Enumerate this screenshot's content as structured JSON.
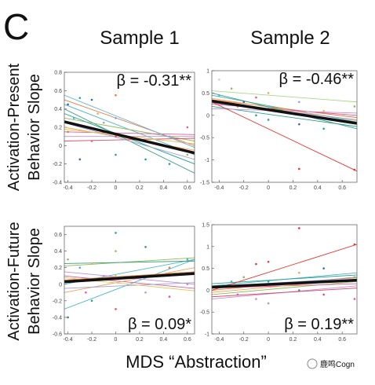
{
  "figure": {
    "panel": "C",
    "columns": [
      "Sample 1",
      "Sample 2"
    ],
    "rows": [
      [
        "Activation-Present",
        "Behavior Slope"
      ],
      [
        "Activation-Future",
        "Behavior Slope"
      ]
    ],
    "xlabel": "MDS “Abstraction”",
    "watermark": "鹿鸣Cogn"
  },
  "chart_data": [
    {
      "type": "scatter",
      "annotation": "β = -0.31**",
      "xlim": [
        -0.43,
        0.66
      ],
      "ylim": [
        -0.4,
        0.8
      ],
      "xticks": [
        -0.4,
        -0.2,
        0,
        0.2,
        0.4,
        0.6
      ],
      "yticks": [
        -0.4,
        -0.2,
        0,
        0.2,
        0.4,
        0.6,
        0.8
      ],
      "x_range": [
        -0.43,
        0.66
      ],
      "fit": {
        "color": "#111111",
        "values": [
          0.26,
          -0.08
        ]
      },
      "lines": [
        {
          "color": "#4db6c4",
          "values": [
            0.45,
            -0.1
          ]
        },
        {
          "color": "#e07b39",
          "values": [
            0.5,
            0.0
          ]
        },
        {
          "color": "#8fbc5a",
          "values": [
            0.3,
            0.05
          ]
        },
        {
          "color": "#e05a9a",
          "values": [
            0.15,
            0.12
          ]
        },
        {
          "color": "#c48fd6",
          "values": [
            0.1,
            0.1
          ]
        },
        {
          "color": "#2aa198",
          "values": [
            0.35,
            -0.2
          ]
        },
        {
          "color": "#f0a35e",
          "values": [
            0.2,
            -0.05
          ]
        },
        {
          "color": "#3a9c7a",
          "values": [
            0.4,
            -0.3
          ]
        },
        {
          "color": "#d94f6b",
          "values": [
            0.05,
            0.08
          ]
        },
        {
          "color": "#9aa0d8",
          "values": [
            0.25,
            -0.15
          ]
        },
        {
          "color": "#e7c14d",
          "values": [
            0.18,
            0.02
          ]
        },
        {
          "color": "#6ab0e0",
          "values": [
            0.55,
            -0.02
          ]
        }
      ],
      "points": {
        "x": [
          -0.4,
          -0.4,
          -0.35,
          -0.3,
          -0.25,
          -0.2,
          -0.2,
          -0.15,
          -0.1,
          0,
          0,
          0,
          0,
          0.25,
          0.25,
          0.45,
          0.45,
          0.6,
          0.6,
          -0.3
        ],
        "values": [
          0.45,
          0.15,
          0.3,
          0.52,
          0.2,
          0.5,
          0.05,
          0.35,
          0.25,
          0.55,
          0.3,
          0.1,
          -0.1,
          0.05,
          -0.15,
          0.1,
          -0.2,
          0.2,
          -0.1,
          -0.15
        ],
        "colors": [
          "#2f6db5",
          "#e07b39",
          "#4db6c4",
          "#2aa198",
          "#8fbc5a",
          "#3a5fb0",
          "#e05a9a",
          "#f0a35e",
          "#c48fd6",
          "#e07b39",
          "#6ab0e0",
          "#d94f6b",
          "#3a9c7a",
          "#e7c14d",
          "#2aa198",
          "#9aa0d8",
          "#3a9c7a",
          "#e05a9a",
          "#8fbc5a",
          "#2f6db5"
        ]
      }
    },
    {
      "type": "scatter",
      "annotation": "β = -0.46**",
      "xlim": [
        -0.46,
        0.72
      ],
      "ylim": [
        -1.5,
        1
      ],
      "xticks": [
        -0.4,
        -0.2,
        0,
        0.2,
        0.4,
        0.6
      ],
      "yticks": [
        -1.5,
        -1,
        -0.5,
        0,
        0.5,
        1
      ],
      "x_range": [
        -0.46,
        0.72
      ],
      "fit": {
        "color": "#111111",
        "values": [
          0.32,
          -0.18
        ]
      },
      "lines": [
        {
          "color": "#4db6c4",
          "values": [
            0.45,
            -0.15
          ]
        },
        {
          "color": "#e07b39",
          "values": [
            0.35,
            -0.05
          ]
        },
        {
          "color": "#8fbc5a",
          "values": [
            0.3,
            -0.2
          ]
        },
        {
          "color": "#e05a9a",
          "values": [
            0.25,
            0.0
          ]
        },
        {
          "color": "#a8d88a",
          "values": [
            0.55,
            0.3
          ]
        },
        {
          "color": "#2aa198",
          "values": [
            0.2,
            -0.25
          ]
        },
        {
          "color": "#f0a35e",
          "values": [
            0.38,
            -0.12
          ]
        },
        {
          "color": "#c48fd6",
          "values": [
            0.15,
            0.05
          ]
        },
        {
          "color": "#3a9c7a",
          "values": [
            0.5,
            -0.3
          ]
        },
        {
          "color": "#9aa0d8",
          "values": [
            0.28,
            -0.1
          ]
        },
        {
          "color": "#e53935",
          "values": [
            0.3,
            -1.25
          ]
        }
      ],
      "points": {
        "x": [
          -0.4,
          -0.4,
          -0.3,
          -0.25,
          -0.2,
          -0.1,
          -0.1,
          0,
          0,
          0,
          0.25,
          0.25,
          0.45,
          0.45,
          0.7,
          0.7,
          0.25
        ],
        "values": [
          0.8,
          0.45,
          0.6,
          0.2,
          0.3,
          0.4,
          0.0,
          0.5,
          0.15,
          -0.1,
          0.3,
          -0.2,
          0.1,
          -0.3,
          0.2,
          -1.22,
          -1.2
        ],
        "colors": [
          "#cfcfcf",
          "#4db6c4",
          "#8fbc5a",
          "#e07b39",
          "#2f6db5",
          "#e05a9a",
          "#3a9c7a",
          "#f0a35e",
          "#c48fd6",
          "#2aa198",
          "#9aa0d8",
          "#3a5fb0",
          "#e7c14d",
          "#2aa198",
          "#8fbc5a",
          "#e53935",
          "#e53935"
        ]
      }
    },
    {
      "type": "scatter",
      "annotation": "β = 0.09*",
      "xlim": [
        -0.43,
        0.66
      ],
      "ylim": [
        -0.6,
        0.7
      ],
      "xticks": [
        -0.4,
        -0.2,
        0,
        0.2,
        0.4,
        0.6
      ],
      "yticks": [
        -0.6,
        -0.4,
        -0.2,
        0,
        0.2,
        0.4,
        0.6
      ],
      "x_range": [
        -0.43,
        0.66
      ],
      "fit": {
        "color": "#111111",
        "values": [
          0.03,
          0.13
        ]
      },
      "lines": [
        {
          "color": "#4db6c4",
          "values": [
            0.0,
            0.3
          ]
        },
        {
          "color": "#8fbc5a",
          "values": [
            0.22,
            0.32
          ]
        },
        {
          "color": "#4db6c4",
          "values": [
            -0.3,
            0.3
          ]
        },
        {
          "color": "#e05a9a",
          "values": [
            0.1,
            -0.05
          ]
        },
        {
          "color": "#e07b39",
          "values": [
            0.05,
            0.15
          ]
        },
        {
          "color": "#f0a35e",
          "values": [
            -0.1,
            0.2
          ]
        },
        {
          "color": "#c48fd6",
          "values": [
            0.15,
            0.0
          ]
        },
        {
          "color": "#d94f6b",
          "values": [
            0.02,
            0.12
          ]
        },
        {
          "color": "#3a9c7a",
          "values": [
            0.25,
            0.28
          ]
        },
        {
          "color": "#9aa0d8",
          "values": [
            -0.05,
            0.02
          ]
        },
        {
          "color": "#e7c14d",
          "values": [
            0.08,
            -0.08
          ]
        }
      ],
      "points": {
        "x": [
          -0.4,
          -0.4,
          -0.35,
          -0.3,
          -0.25,
          -0.2,
          -0.2,
          -0.1,
          0,
          0,
          0,
          0,
          0.25,
          0.25,
          0.45,
          0.45,
          0.6,
          0.6
        ],
        "values": [
          0.3,
          -0.4,
          0.05,
          0.2,
          -0.1,
          0.25,
          -0.2,
          0.1,
          0.62,
          0.4,
          0.1,
          -0.3,
          0.45,
          -0.1,
          0.2,
          -0.15,
          0.3,
          0.0
        ],
        "colors": [
          "#8fbc5a",
          "#2f6db5",
          "#e07b39",
          "#4db6c4",
          "#e05a9a",
          "#f0a35e",
          "#3a9c7a",
          "#c48fd6",
          "#2aa198",
          "#8fbc5a",
          "#e7c14d",
          "#d94f6b",
          "#3a9c7a",
          "#9aa0d8",
          "#e07b39",
          "#e05a9a",
          "#4db6c4",
          "#c48fd6"
        ]
      }
    },
    {
      "type": "scatter",
      "annotation": "β = 0.19**",
      "xlim": [
        -0.46,
        0.72
      ],
      "ylim": [
        -1,
        1.5
      ],
      "xticks": [
        -0.4,
        -0.2,
        0,
        0.2,
        0.4,
        0.6
      ],
      "yticks": [
        -1,
        -0.5,
        0,
        0.5,
        1,
        1.5
      ],
      "x_range": [
        -0.46,
        0.72
      ],
      "fit": {
        "color": "#111111",
        "values": [
          0.07,
          0.23
        ]
      },
      "lines": [
        {
          "color": "#4db6c4",
          "values": [
            0.1,
            0.4
          ]
        },
        {
          "color": "#e07b39",
          "values": [
            0.0,
            0.3
          ]
        },
        {
          "color": "#8fbc5a",
          "values": [
            -0.1,
            0.2
          ]
        },
        {
          "color": "#e05a9a",
          "values": [
            0.05,
            0.15
          ]
        },
        {
          "color": "#c48fd6",
          "values": [
            -0.2,
            0.1
          ]
        },
        {
          "color": "#2aa198",
          "values": [
            0.15,
            0.35
          ]
        },
        {
          "color": "#f0a35e",
          "values": [
            -0.05,
            0.25
          ]
        },
        {
          "color": "#9aa0d8",
          "values": [
            0.08,
            0.28
          ]
        },
        {
          "color": "#d94f6b",
          "values": [
            -0.15,
            0.05
          ]
        },
        {
          "color": "#e53935",
          "values": [
            0.0,
            1.05
          ]
        }
      ],
      "points": {
        "x": [
          -0.4,
          -0.3,
          -0.25,
          -0.2,
          -0.1,
          -0.1,
          0,
          0,
          0,
          0.25,
          0.25,
          0.45,
          0.45,
          0.7,
          0.7,
          0.25,
          0.7
        ],
        "values": [
          0.1,
          0.2,
          -0.1,
          0.3,
          0.6,
          -0.2,
          0.65,
          0.2,
          -0.3,
          0.4,
          0.0,
          0.5,
          -0.1,
          0.3,
          -0.2,
          1.42,
          1.05
        ],
        "colors": [
          "#e07b39",
          "#4db6c4",
          "#e05a9a",
          "#8fbc5a",
          "#e53935",
          "#c48fd6",
          "#e53935",
          "#2aa198",
          "#9aa0d8",
          "#f0a35e",
          "#3a9c7a",
          "#2f6db5",
          "#d94f6b",
          "#8fbc5a",
          "#e05a9a",
          "#e53935",
          "#e53935"
        ]
      }
    }
  ]
}
